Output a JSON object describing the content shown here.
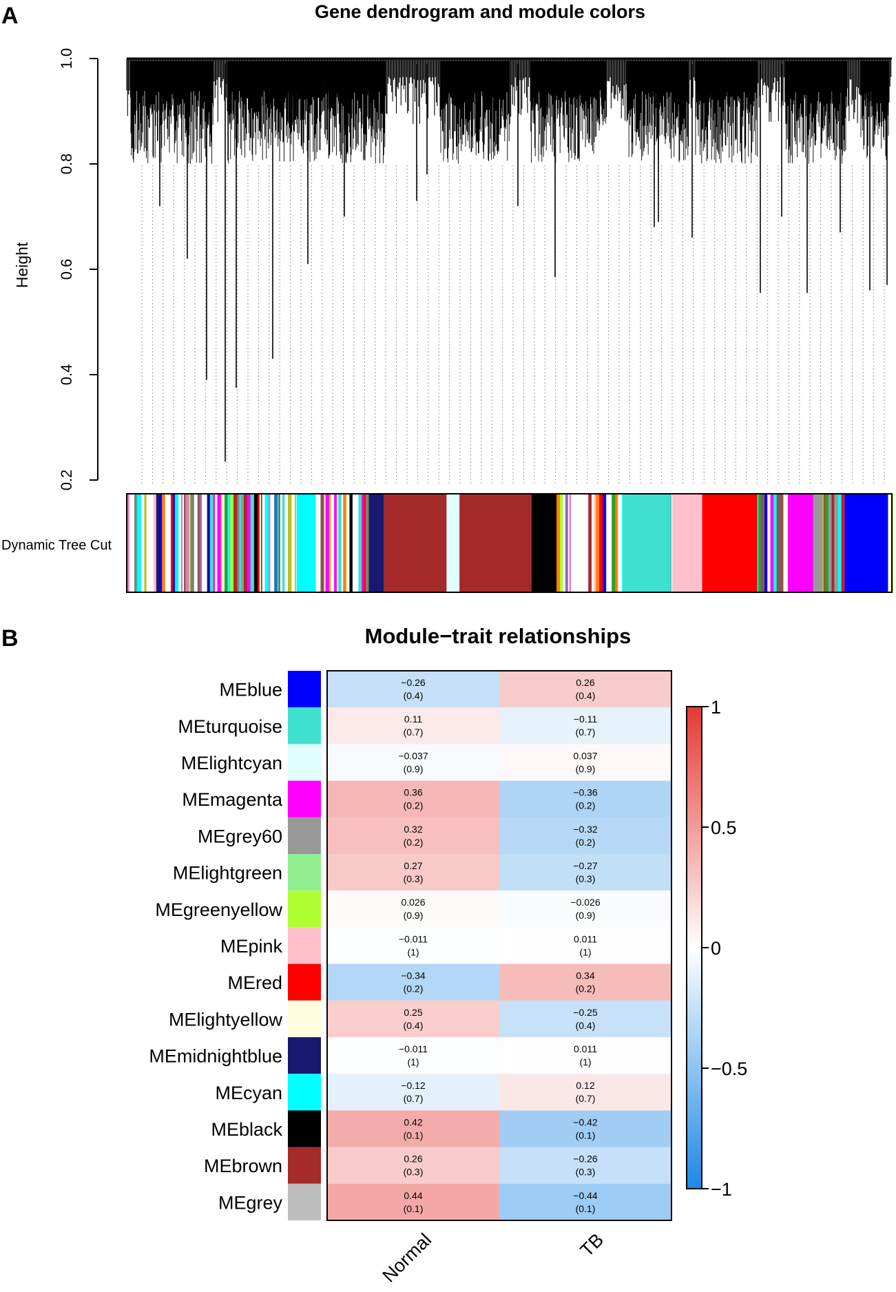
{
  "panel_a": {
    "letter": "A",
    "title": "Gene dendrogram and module colors",
    "ylabel": "Height",
    "yticks": [
      "0.2",
      "0.4",
      "0.6",
      "0.8",
      "1.0"
    ],
    "color_row_label": "Dynamic Tree Cut",
    "blocks": [
      {
        "module": "turquoise",
        "color": "#00ffff",
        "start": 0.222,
        "end": 0.247
      },
      {
        "module": "midnightblue",
        "color": "#191970",
        "start": 0.317,
        "end": 0.336
      },
      {
        "module": "brown",
        "color": "#a52a2a",
        "start": 0.336,
        "end": 0.418
      },
      {
        "module": "lightcyan",
        "color": "#e0ffff",
        "start": 0.418,
        "end": 0.435
      },
      {
        "module": "brown",
        "color": "#a52a2a",
        "start": 0.435,
        "end": 0.529
      },
      {
        "module": "black",
        "color": "#000000",
        "start": 0.529,
        "end": 0.561
      },
      {
        "module": "turquoise",
        "color": "#40e0d0",
        "start": 0.649,
        "end": 0.711
      },
      {
        "module": "pink",
        "color": "#ffc0cb",
        "start": 0.713,
        "end": 0.752
      },
      {
        "module": "red",
        "color": "#ff0000",
        "start": 0.752,
        "end": 0.824
      },
      {
        "module": "magenta",
        "color": "#ff00ff",
        "start": 0.864,
        "end": 0.897
      },
      {
        "module": "grey60",
        "color": "#999999",
        "start": 0.897,
        "end": 0.909
      },
      {
        "module": "blue",
        "color": "#0000ff",
        "start": 0.938,
        "end": 0.995
      }
    ]
  },
  "panel_b": {
    "letter": "B",
    "title": "Module−trait relationships",
    "columns": [
      "Normal",
      "TB"
    ],
    "legend_ticks": [
      "1",
      "0.5",
      "0",
      "−0.5",
      "−1"
    ],
    "rows": [
      {
        "name": "MEblue",
        "color": "#0000ff",
        "r": [
          -0.26,
          0.26
        ],
        "labels": [
          "−0.26",
          "0.26"
        ],
        "p": [
          "(0.4)",
          "(0.4)"
        ]
      },
      {
        "name": "MEturquoise",
        "color": "#40e0d0",
        "r": [
          0.11,
          -0.11
        ],
        "labels": [
          "0.11",
          "−0.11"
        ],
        "p": [
          "(0.7)",
          "(0.7)"
        ]
      },
      {
        "name": "MElightcyan",
        "color": "#e0ffff",
        "r": [
          -0.037,
          0.037
        ],
        "labels": [
          "−0.037",
          "0.037"
        ],
        "p": [
          "(0.9)",
          "(0.9)"
        ]
      },
      {
        "name": "MEmagenta",
        "color": "#ff00ff",
        "r": [
          0.36,
          -0.36
        ],
        "labels": [
          "0.36",
          "−0.36"
        ],
        "p": [
          "(0.2)",
          "(0.2)"
        ]
      },
      {
        "name": "MEgrey60",
        "color": "#999999",
        "r": [
          0.32,
          -0.32
        ],
        "labels": [
          "0.32",
          "−0.32"
        ],
        "p": [
          "(0.2)",
          "(0.2)"
        ]
      },
      {
        "name": "MElightgreen",
        "color": "#90ee90",
        "r": [
          0.27,
          -0.27
        ],
        "labels": [
          "0.27",
          "−0.27"
        ],
        "p": [
          "(0.3)",
          "(0.3)"
        ]
      },
      {
        "name": "MEgreenyellow",
        "color": "#adff2f",
        "r": [
          0.026,
          -0.026
        ],
        "labels": [
          "0.026",
          "−0.026"
        ],
        "p": [
          "(0.9)",
          "(0.9)"
        ]
      },
      {
        "name": "MEpink",
        "color": "#ffc0cb",
        "r": [
          -0.011,
          0.011
        ],
        "labels": [
          "−0.011",
          "0.011"
        ],
        "p": [
          "(1)",
          "(1)"
        ]
      },
      {
        "name": "MEred",
        "color": "#ff0000",
        "r": [
          -0.34,
          0.34
        ],
        "labels": [
          "−0.34",
          "0.34"
        ],
        "p": [
          "(0.2)",
          "(0.2)"
        ]
      },
      {
        "name": "MElightyellow",
        "color": "#ffffe0",
        "r": [
          0.25,
          -0.25
        ],
        "labels": [
          "0.25",
          "−0.25"
        ],
        "p": [
          "(0.4)",
          "(0.4)"
        ]
      },
      {
        "name": "MEmidnightblue",
        "color": "#191970",
        "r": [
          -0.011,
          0.011
        ],
        "labels": [
          "−0.011",
          "0.011"
        ],
        "p": [
          "(1)",
          "(1)"
        ]
      },
      {
        "name": "MEcyan",
        "color": "#00ffff",
        "r": [
          -0.12,
          0.12
        ],
        "labels": [
          "−0.12",
          "0.12"
        ],
        "p": [
          "(0.7)",
          "(0.7)"
        ]
      },
      {
        "name": "MEblack",
        "color": "#000000",
        "r": [
          0.42,
          -0.42
        ],
        "labels": [
          "0.42",
          "−0.42"
        ],
        "p": [
          "(0.1)",
          "(0.1)"
        ]
      },
      {
        "name": "MEbrown",
        "color": "#a52a2a",
        "r": [
          0.26,
          -0.26
        ],
        "labels": [
          "0.26",
          "−0.26"
        ],
        "p": [
          "(0.3)",
          "(0.3)"
        ]
      },
      {
        "name": "MEgrey",
        "color": "#bebebe",
        "r": [
          0.44,
          -0.44
        ],
        "labels": [
          "0.44",
          "−0.44"
        ],
        "p": [
          "(0.1)",
          "(0.1)"
        ]
      }
    ]
  },
  "chart_data": [
    {
      "type": "dendrogram",
      "title": "Gene dendrogram and module colors",
      "ylabel": "Height",
      "ylim": [
        0.2,
        1.0
      ],
      "yticks": [
        0.2,
        0.4,
        0.6,
        0.8,
        1.0
      ],
      "color_row_label": "Dynamic Tree Cut"
    },
    {
      "type": "heatmap",
      "title": "Module−trait relationships",
      "columns": [
        "Normal",
        "TB"
      ],
      "rows": [
        "MEblue",
        "MEturquoise",
        "MElightcyan",
        "MEmagenta",
        "MEgrey60",
        "MElightgreen",
        "MEgreenyellow",
        "MEpink",
        "MEred",
        "MElightyellow",
        "MEmidnightblue",
        "MEcyan",
        "MEblack",
        "MEbrown",
        "MEgrey"
      ],
      "values": [
        [
          -0.26,
          0.26
        ],
        [
          0.11,
          -0.11
        ],
        [
          -0.037,
          0.037
        ],
        [
          0.36,
          -0.36
        ],
        [
          0.32,
          -0.32
        ],
        [
          0.27,
          -0.27
        ],
        [
          0.026,
          -0.026
        ],
        [
          -0.011,
          0.011
        ],
        [
          -0.34,
          0.34
        ],
        [
          0.25,
          -0.25
        ],
        [
          -0.011,
          0.011
        ],
        [
          -0.12,
          0.12
        ],
        [
          0.42,
          -0.42
        ],
        [
          0.26,
          -0.26
        ],
        [
          0.44,
          -0.44
        ]
      ],
      "pvalues": [
        [
          0.4,
          0.4
        ],
        [
          0.7,
          0.7
        ],
        [
          0.9,
          0.9
        ],
        [
          0.2,
          0.2
        ],
        [
          0.2,
          0.2
        ],
        [
          0.3,
          0.3
        ],
        [
          0.9,
          0.9
        ],
        [
          1,
          1
        ],
        [
          0.2,
          0.2
        ],
        [
          0.4,
          0.4
        ],
        [
          1,
          1
        ],
        [
          0.7,
          0.7
        ],
        [
          0.1,
          0.1
        ],
        [
          0.3,
          0.3
        ],
        [
          0.1,
          0.1
        ]
      ],
      "color_scale": {
        "min": -1,
        "mid": 0,
        "max": 1,
        "colors": [
          "#1e88e5",
          "#ffffff",
          "#e53935"
        ]
      }
    }
  ]
}
